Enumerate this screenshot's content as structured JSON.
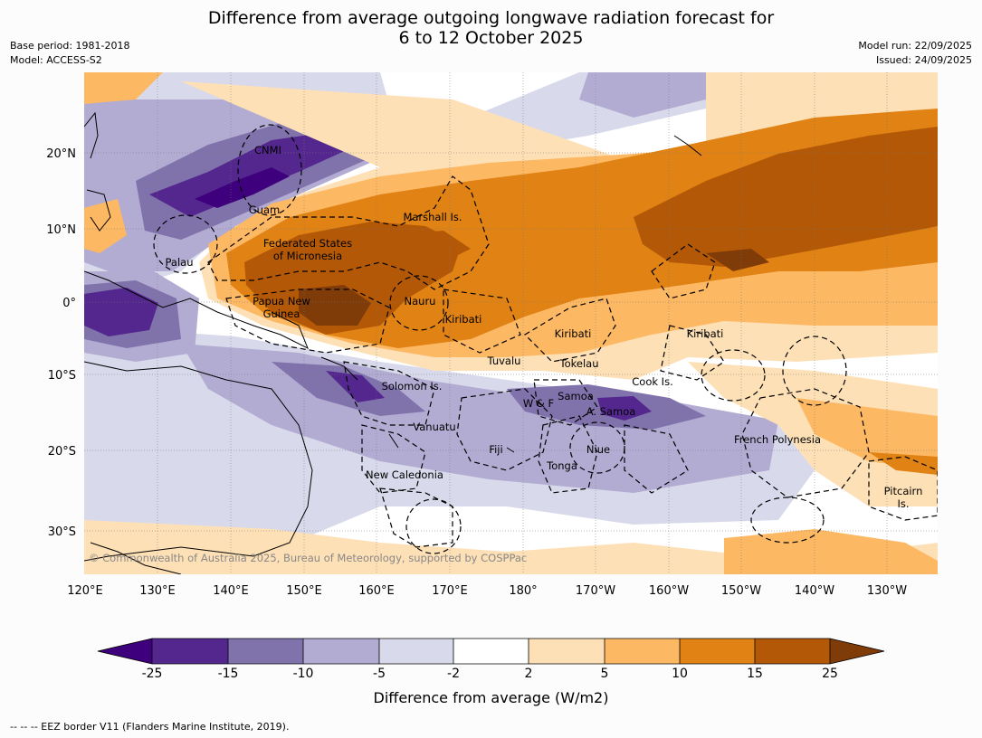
{
  "title": {
    "line1": "Difference from average outgoing longwave radiation forecast for",
    "line2": "6 to 12 October 2025"
  },
  "meta": {
    "base_period": "Base period: 1981-2018",
    "model": "Model: ACCESS-S2",
    "model_run": "Model run: 22/09/2025",
    "issued": "Issued: 24/09/2025"
  },
  "axes": {
    "lon_labels": [
      "120°E",
      "130°E",
      "140°E",
      "150°E",
      "160°E",
      "170°E",
      "180°",
      "170°W",
      "160°W",
      "150°W",
      "140°W",
      "130°W"
    ],
    "lat_labels": [
      "20°N",
      "10°N",
      "0°",
      "10°S",
      "20°S",
      "30°S"
    ]
  },
  "places": {
    "cnmi": "CNMI",
    "guam": "Guam",
    "marshall": "Marshall Is.",
    "fsm1": "Federated States",
    "fsm2": "of Micronesia",
    "palau": "Palau",
    "png1": "Papua New",
    "png2": "Guinea",
    "nauru": "Nauru",
    "kiribati_w": "Kiribati",
    "kiribati_c": "Kiribati",
    "kiribati_e": "Kiribati",
    "tuvalu": "Tuvalu",
    "tokelau": "Tokelau",
    "cook": "Cook Is.",
    "solomon": "Solomon Is.",
    "samoa": "Samoa",
    "wf": "W & F",
    "asamoa": "A. Samoa",
    "vanuatu": "Vanuatu",
    "fiji": "Fiji",
    "niue": "Niue",
    "tonga": "Tonga",
    "french_polynesia": "French Polynesia",
    "new_caledonia": "New Caledonia",
    "pitcairn1": "Pitcairn",
    "pitcairn2": "Is."
  },
  "copyright": "© Commonwealth of Australia 2025, Bureau of Meteorology, supported by COSPPac",
  "colorbar": {
    "ticks": [
      "-25",
      "-15",
      "-10",
      "-5",
      "-2",
      "2",
      "5",
      "10",
      "15",
      "25"
    ],
    "colors": [
      "#3f007d",
      "#54278f",
      "#8073ac",
      "#b2abd2",
      "#d8daeb",
      "#ffffff",
      "#fee0b6",
      "#fdb863",
      "#e08214",
      "#b35806",
      "#7f3b08"
    ],
    "title": "Difference from average (W/m2)"
  },
  "footnote": "--  --  -- EEZ border V11 (Flanders Marine Institute, 2019)."
}
